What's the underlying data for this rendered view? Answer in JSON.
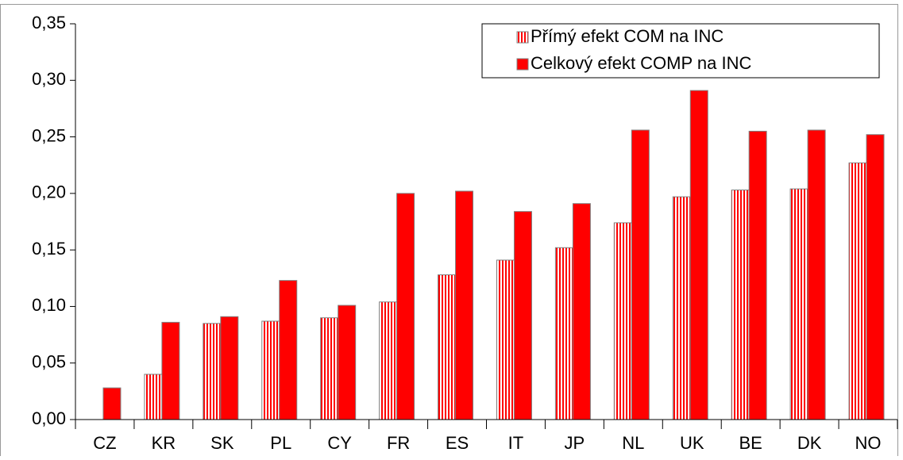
{
  "chart_data": {
    "type": "bar",
    "categories": [
      "CZ",
      "KR",
      "SK",
      "PL",
      "CY",
      "FR",
      "ES",
      "IT",
      "JP",
      "NL",
      "UK",
      "BE",
      "DK",
      "NO"
    ],
    "series": [
      {
        "name": "Přímý efekt COM na INC",
        "color": "#ff0000",
        "pattern": "vertical-stripes",
        "values": [
          0,
          0.04,
          0.085,
          0.087,
          0.09,
          0.104,
          0.128,
          0.141,
          0.152,
          0.174,
          0.197,
          0.203,
          0.204,
          0.227
        ]
      },
      {
        "name": "Celkový efekt COMP na INC",
        "color": "#ff0000",
        "values": [
          0.028,
          0.086,
          0.091,
          0.123,
          0.101,
          0.2,
          0.202,
          0.184,
          0.191,
          0.256,
          0.291,
          0.255,
          0.256,
          0.252
        ]
      }
    ],
    "ylim": [
      0,
      0.35
    ],
    "yticks": [
      {
        "value": 0,
        "label": "0,00"
      },
      {
        "value": 0.05,
        "label": "0,05"
      },
      {
        "value": 0.1,
        "label": "0,10"
      },
      {
        "value": 0.15,
        "label": "0,15"
      },
      {
        "value": 0.2,
        "label": "0,20"
      },
      {
        "value": 0.25,
        "label": "0,25"
      },
      {
        "value": 0.3,
        "label": "0,30"
      },
      {
        "value": 0.35,
        "label": "0,35"
      }
    ],
    "grid": false,
    "legend": "upper right"
  }
}
